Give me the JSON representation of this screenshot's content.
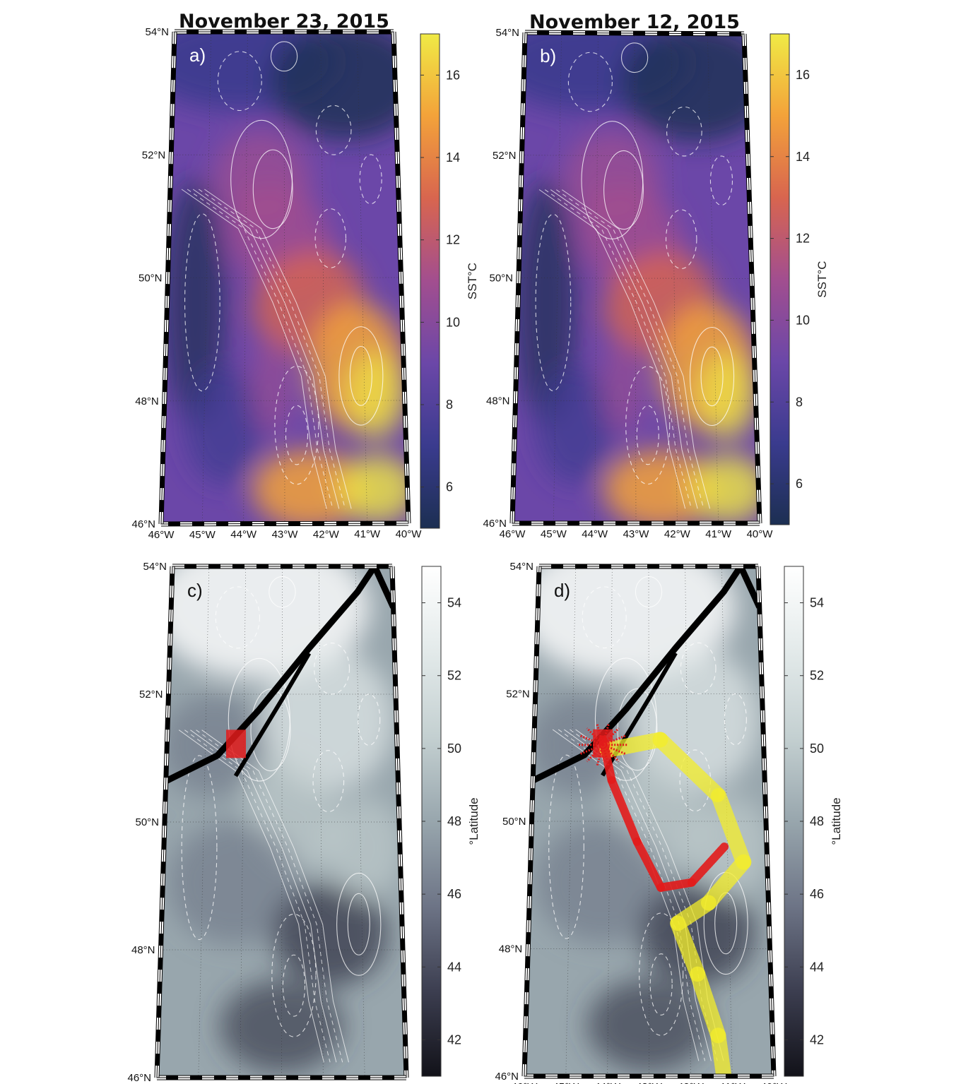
{
  "panels": [
    {
      "id": "a",
      "label": "a)",
      "title": "November 23, 2015",
      "colorbar": "sst"
    },
    {
      "id": "b",
      "label": "b)",
      "title": "November 12, 2015",
      "colorbar": "sst"
    },
    {
      "id": "c",
      "label": "c)",
      "title": "",
      "colorbar": "lat"
    },
    {
      "id": "d",
      "label": "d)",
      "title": "",
      "colorbar": "lat"
    }
  ],
  "lat_labels": [
    "54°N",
    "52°N",
    "50°N",
    "48°N",
    "46°N"
  ],
  "lon_labels": [
    "46°W",
    "45°W",
    "44°W",
    "43°W",
    "42°W",
    "41°W",
    "40°W"
  ],
  "colorbars": {
    "sst": {
      "label": "SST°C",
      "ticks": [
        "16",
        "14",
        "12",
        "10",
        "8",
        "6"
      ],
      "range": [
        5,
        17
      ],
      "tick_values": [
        16,
        14,
        12,
        10,
        8,
        6
      ],
      "colors": [
        "#1c2f52",
        "#3a3b8e",
        "#6b47a8",
        "#a24e8f",
        "#d8654f",
        "#f3a23a",
        "#f0ea45"
      ]
    },
    "lat": {
      "label": "°Latitude",
      "ticks": [
        "54",
        "52",
        "50",
        "48",
        "46",
        "44",
        "42"
      ],
      "range": [
        41,
        55
      ],
      "tick_values": [
        54,
        52,
        50,
        48,
        46,
        44,
        42
      ],
      "colors": [
        "#121219",
        "#3c3e50",
        "#6d7486",
        "#98a6ad",
        "#c4d0d1",
        "#e3eaea",
        "#ffffff"
      ]
    }
  },
  "overlay_colors": {
    "release": "#e31b1b",
    "trajectory": "#f4ee2a",
    "track": "#000000"
  }
}
